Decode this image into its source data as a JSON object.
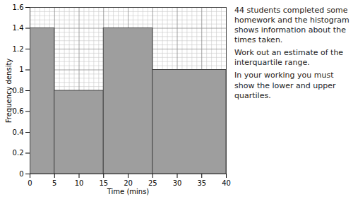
{
  "chart_data": {
    "type": "histogram",
    "xlabel": "Time (mins)",
    "ylabel": "Frequency density",
    "bins": [
      0,
      5,
      15,
      25,
      40
    ],
    "values": [
      1.4,
      0.8,
      1.4,
      1.0
    ],
    "color": "#9e9e9e",
    "xlim": [
      0,
      40
    ],
    "xticks": [
      0,
      5,
      10,
      15,
      20,
      25,
      30,
      35,
      40
    ],
    "ylim": [
      0,
      1.6
    ],
    "yticks": [
      0,
      0.2,
      0.4,
      0.6,
      0.8,
      1,
      1.2,
      1.4,
      1.6
    ],
    "grid": true,
    "annotations": [
      "44 students completed some homework and the histogram shows information about the times taken.",
      "Work out an estimate of the interquartile range.",
      "In your working you must show the lower and upper quartiles."
    ]
  }
}
